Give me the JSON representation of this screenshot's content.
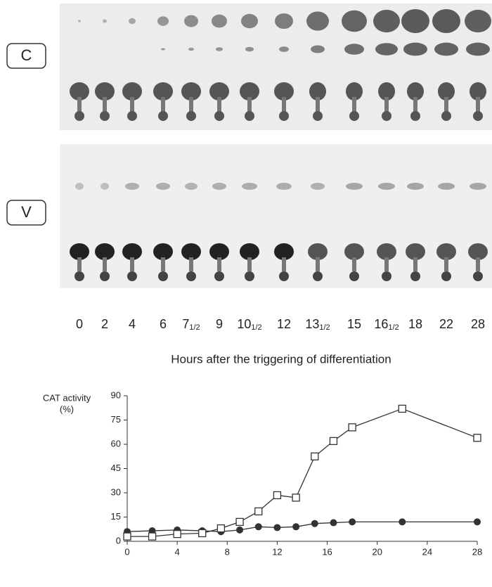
{
  "panels": [
    {
      "label": "C"
    },
    {
      "label": "V"
    }
  ],
  "lanes": [
    {
      "main": "0"
    },
    {
      "main": "2"
    },
    {
      "main": "4"
    },
    {
      "main": "6"
    },
    {
      "main": "7",
      "sub": "1/2"
    },
    {
      "main": "9"
    },
    {
      "main": "10",
      "sub": "1/2"
    },
    {
      "main": "12"
    },
    {
      "main": "13",
      "sub": "1/2"
    },
    {
      "main": "15"
    },
    {
      "main": "16",
      "sub": "1/2"
    },
    {
      "main": "18"
    },
    {
      "main": "22"
    },
    {
      "main": "28"
    }
  ],
  "caption": "Hours after the triggering of differentiation",
  "chart_data": {
    "type": "line",
    "y_label": [
      "CAT activity",
      "(%)"
    ],
    "x": [
      0,
      2,
      4,
      6,
      7.5,
      9,
      10.5,
      12,
      13.5,
      15,
      16.5,
      18,
      22,
      28
    ],
    "series": [
      {
        "marker": "square-open",
        "color": "#333333",
        "values": [
          3,
          3,
          4.5,
          5,
          8,
          12,
          18.5,
          28.5,
          27,
          52.5,
          62,
          70.5,
          82,
          64
        ]
      },
      {
        "marker": "circle-filled",
        "color": "#333333",
        "values": [
          6,
          6.5,
          7,
          6.5,
          6,
          7,
          9,
          8.5,
          9,
          11,
          11.5,
          12,
          12,
          12
        ]
      }
    ],
    "xlim": [
      0,
      28
    ],
    "ylim": [
      0,
      90
    ],
    "xticks": [
      0,
      4,
      8,
      12,
      16,
      20,
      24,
      28
    ],
    "yticks": [
      0,
      15,
      30,
      45,
      60,
      75,
      90
    ]
  }
}
